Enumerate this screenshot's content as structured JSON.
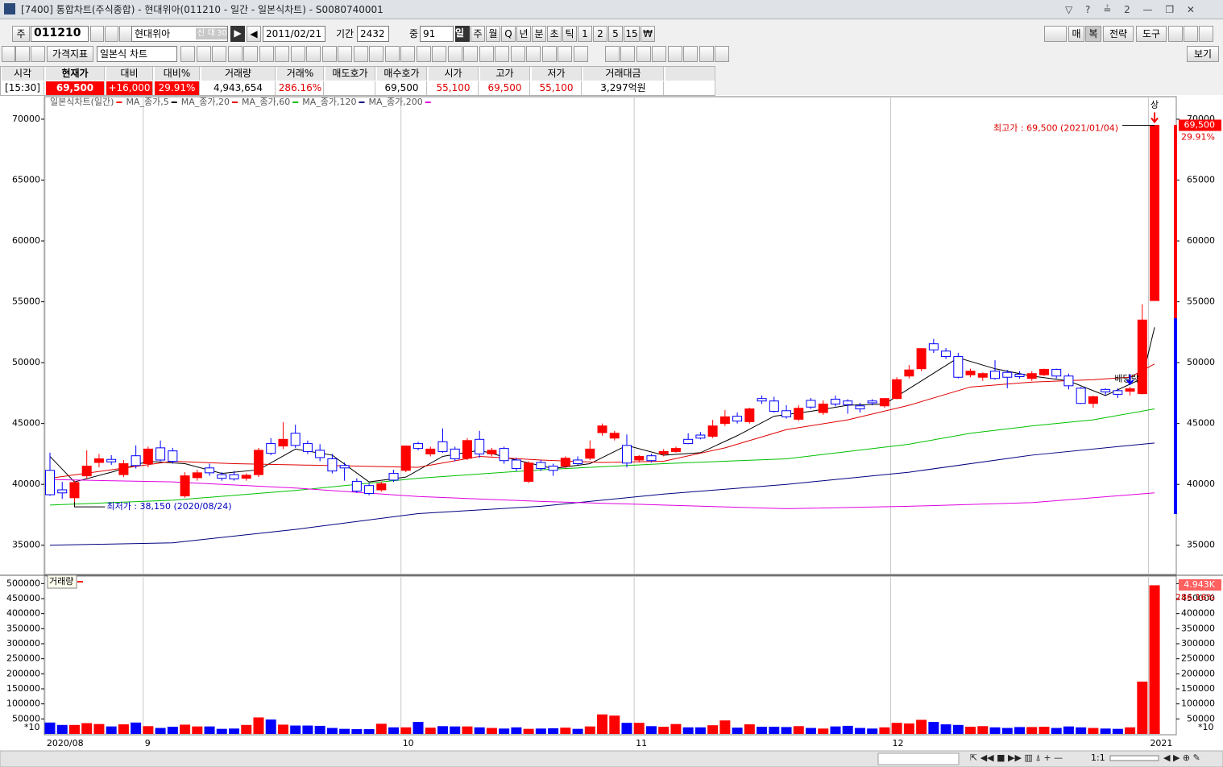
{
  "window": {
    "title": "[7400] 통합차트(주식종합) - 현대위아(011210 - 일간 - 일본식차트) - S0080740001"
  },
  "toolbar": {
    "market": "주",
    "code": "011210",
    "name": "현대위아",
    "badges": [
      "신",
      "대",
      "30"
    ],
    "date": "2011/02/21",
    "period_label": "기간",
    "period": "2432",
    "count_label": "중",
    "count": "91",
    "intervals": [
      "일",
      "주",
      "월",
      "Q",
      "년",
      "분",
      "초",
      "틱",
      "1",
      "2",
      "5",
      "15"
    ],
    "right_buttons": [
      "매",
      "복",
      "전략",
      "도구"
    ],
    "indicator": "가격지표",
    "chart_style": "일본식 차트",
    "view": "보기"
  },
  "quote": {
    "cells": [
      {
        "header": "시각",
        "value": "[15:30]"
      },
      {
        "header": "현재가",
        "value": "69,500"
      },
      {
        "header": "대비",
        "value": "+16,000"
      },
      {
        "header": "대비%",
        "value": "29.91%"
      },
      {
        "header": "거래량",
        "value": "4,943,654"
      },
      {
        "header": "거래%",
        "value": "286.16%"
      },
      {
        "header": "매도호가"
      },
      {
        "header": "매수호가",
        "value": "69,500"
      },
      {
        "header": "시가",
        "value": "55,100"
      },
      {
        "header": "고가",
        "value": "69,500"
      },
      {
        "header": "저가",
        "value": "55,100"
      },
      {
        "header": "거래대금",
        "value": "3,297억원"
      }
    ]
  },
  "chart_data": [
    {
      "type": "candlestick",
      "name": "일본식차트(일간)",
      "legend_color": "#ff0000",
      "color_up": "#ff0000",
      "color_down": "#0000ff",
      "open": [
        41150,
        39550,
        38900,
        40700,
        41800,
        42050,
        40800,
        42350,
        41700,
        43000,
        42750,
        39050,
        40550,
        41350,
        40800,
        40800,
        40500,
        40800,
        43350,
        43150,
        44200,
        43350,
        42800,
        42100,
        41550,
        40250,
        39900,
        39550,
        40900,
        41150,
        43350,
        42500,
        43500,
        42900,
        42150,
        43700,
        42500,
        42950,
        42000,
        40250,
        41800,
        41500,
        41500,
        42000,
        42150,
        44250,
        43800,
        43200,
        42000,
        42350,
        42500,
        42700,
        43700,
        44050,
        43950,
        45000,
        45600,
        45150,
        47050,
        46850,
        46050,
        45350,
        46900,
        45900,
        47000,
        46850,
        46450,
        46850,
        46450,
        47050,
        48900,
        49500,
        51550,
        50950,
        50500,
        49000,
        48800,
        49300,
        49200,
        49050,
        48700,
        49000,
        49450,
        48900,
        47900,
        46650,
        47800,
        47700,
        47650,
        47450,
        55100
      ],
      "high": [
        42600,
        40200,
        40300,
        42800,
        42500,
        42400,
        42000,
        43200,
        43100,
        43600,
        43000,
        41000,
        41200,
        41700,
        41000,
        41100,
        40900,
        43000,
        43800,
        45100,
        44900,
        43600,
        43300,
        42500,
        41800,
        40500,
        40100,
        40200,
        41200,
        43200,
        43500,
        43100,
        44600,
        43100,
        43800,
        44400,
        43000,
        43100,
        42200,
        41900,
        42000,
        41700,
        42300,
        42300,
        43600,
        45000,
        44400,
        44100,
        42400,
        42500,
        42900,
        43100,
        44200,
        44300,
        45300,
        46100,
        45900,
        46300,
        47300,
        47200,
        46500,
        46500,
        47100,
        46900,
        47300,
        47000,
        46700,
        47000,
        47100,
        48800,
        49800,
        51200,
        51950,
        51200,
        50800,
        49500,
        49200,
        50200,
        49400,
        49300,
        49300,
        49500,
        49500,
        49100,
        48000,
        47300,
        47900,
        47900,
        48000,
        54800,
        69500
      ],
      "low": [
        39050,
        38800,
        38150,
        40500,
        41400,
        41600,
        40600,
        41300,
        41400,
        41900,
        41700,
        38900,
        40300,
        40700,
        40300,
        40300,
        40300,
        40600,
        42400,
        42900,
        43000,
        42500,
        41900,
        40900,
        40300,
        39300,
        39100,
        39400,
        40200,
        41000,
        42800,
        42300,
        42600,
        41900,
        42000,
        42200,
        42300,
        41700,
        41100,
        40100,
        41100,
        40700,
        41300,
        41600,
        42000,
        44000,
        43600,
        41400,
        41800,
        41800,
        42300,
        42600,
        43300,
        43700,
        43800,
        44800,
        45000,
        45000,
        46600,
        45900,
        45400,
        45200,
        46200,
        45700,
        46400,
        45800,
        45900,
        46500,
        46300,
        47000,
        48700,
        49300,
        50800,
        50300,
        48700,
        48800,
        48500,
        48600,
        47900,
        48700,
        48500,
        48900,
        48700,
        47800,
        46600,
        46300,
        47300,
        47100,
        47300,
        47400,
        55100
      ],
      "close": [
        39150,
        39300,
        40150,
        41500,
        42100,
        41850,
        41700,
        41550,
        42900,
        42000,
        41900,
        40700,
        40950,
        40950,
        40500,
        40450,
        40750,
        42800,
        42550,
        43700,
        43200,
        42700,
        42200,
        41100,
        41350,
        39450,
        39250,
        40050,
        40350,
        43150,
        42950,
        42900,
        42700,
        42100,
        43600,
        42500,
        42800,
        41950,
        41300,
        41750,
        41300,
        41150,
        42150,
        41700,
        42900,
        44800,
        44200,
        41750,
        42300,
        41950,
        42700,
        42950,
        43350,
        43800,
        44800,
        45550,
        45200,
        46200,
        46850,
        46000,
        45550,
        46250,
        46350,
        46600,
        46600,
        46550,
        46200,
        46700,
        47050,
        48600,
        49400,
        51150,
        51050,
        50500,
        48800,
        49300,
        49100,
        48700,
        48800,
        48850,
        49100,
        49450,
        48900,
        48100,
        46650,
        47200,
        47600,
        47400,
        47850,
        53500,
        69500
      ],
      "series": [
        {
          "name": "MA_종가,5",
          "color": "#000000",
          "x": [
            0,
            2,
            5,
            8,
            11,
            14,
            17,
            20,
            23,
            26,
            29,
            32,
            35,
            38,
            41,
            44,
            47,
            50,
            53,
            56,
            59,
            62,
            65,
            68,
            71,
            74,
            77,
            80,
            83,
            86,
            89,
            90
          ],
          "values": [
            42300,
            40200,
            41000,
            41900,
            41700,
            40900,
            41200,
            42900,
            42400,
            40200,
            40600,
            42300,
            42800,
            42000,
            41300,
            41700,
            43200,
            42400,
            42600,
            44000,
            45600,
            46000,
            46500,
            46600,
            48500,
            50400,
            49500,
            48900,
            48500,
            47300,
            48700,
            52900
          ]
        },
        {
          "name": "MA_종가,20",
          "color": "#e00000",
          "x": [
            0,
            5,
            10,
            15,
            20,
            25,
            30,
            35,
            40,
            45,
            50,
            55,
            60,
            65,
            70,
            75,
            80,
            85,
            88,
            90
          ],
          "values": [
            40500,
            41200,
            41900,
            41700,
            41600,
            41500,
            41400,
            42300,
            42000,
            41800,
            41900,
            43000,
            44500,
            45300,
            46500,
            48000,
            48400,
            48600,
            48800,
            49900
          ]
        },
        {
          "name": "MA_종가,60",
          "color": "#00c000",
          "x": [
            0,
            10,
            20,
            30,
            40,
            50,
            60,
            70,
            75,
            80,
            85,
            90
          ],
          "values": [
            38300,
            38700,
            39500,
            40500,
            41200,
            41700,
            42100,
            43300,
            44200,
            44800,
            45300,
            46200
          ]
        },
        {
          "name": "MA_종가,120",
          "color": "#000080",
          "x": [
            0,
            10,
            20,
            30,
            40,
            50,
            60,
            70,
            80,
            90
          ],
          "values": [
            35000,
            35200,
            36300,
            37600,
            38200,
            39200,
            40000,
            41000,
            42400,
            43400
          ]
        },
        {
          "name": "MA_종가,200",
          "color": "#e000e0",
          "x": [
            0,
            10,
            20,
            30,
            40,
            50,
            60,
            70,
            80,
            90
          ],
          "values": [
            40400,
            40200,
            39700,
            39000,
            38600,
            38300,
            38000,
            38200,
            38500,
            39300
          ]
        }
      ],
      "annotations": [
        {
          "text": "최고가 : 69,500 (2021/01/04)",
          "x": 90,
          "y": 69500,
          "color": "#e00000"
        },
        {
          "text": "최저가 : 38,150 (2020/08/24)",
          "x": 2,
          "y": 38150,
          "color": "#0000c0"
        },
        {
          "text": "배당락",
          "x": 88,
          "y": 47850,
          "color": "#000000"
        },
        {
          "text": "상",
          "x": 90,
          "y": 69500,
          "color": "#000000"
        }
      ],
      "price_marker": {
        "value": 69500,
        "label": "69,500"
      },
      "change": "29.91%",
      "ylim": [
        32600,
        71850
      ],
      "yticks": [
        35000,
        40000,
        45000,
        50000,
        55000,
        60000,
        65000,
        70000
      ],
      "grid": "x",
      "xticks": [
        {
          "value": -0.4,
          "label": "2020/08"
        },
        {
          "value": 7.6,
          "label": "9"
        },
        {
          "value": 28.6,
          "label": "10"
        },
        {
          "value": 47.6,
          "label": "11"
        },
        {
          "value": 68.5,
          "label": "12"
        },
        {
          "value": 89.5,
          "label": "2021"
        }
      ]
    },
    {
      "type": "bar",
      "name": "거래량",
      "legend_color": "#ff0000",
      "unit_label": "*10",
      "values": [
        38000,
        30000,
        30000,
        36000,
        33000,
        25000,
        32000,
        38000,
        26000,
        20000,
        24000,
        31000,
        25000,
        25000,
        17000,
        18000,
        30000,
        55000,
        48000,
        31000,
        28000,
        28000,
        27000,
        20000,
        17000,
        16000,
        16000,
        34000,
        22000,
        22000,
        40000,
        21000,
        26000,
        25000,
        25000,
        22000,
        20000,
        18000,
        22000,
        17000,
        18000,
        19000,
        21000,
        17000,
        25000,
        65000,
        61000,
        37000,
        37000,
        26000,
        24000,
        33000,
        22000,
        22000,
        29000,
        45000,
        21000,
        32000,
        24000,
        24000,
        23000,
        26000,
        20000,
        18000,
        25000,
        27000,
        20000,
        18000,
        22000,
        37000,
        35000,
        47000,
        40000,
        32000,
        30000,
        24000,
        26000,
        22000,
        20000,
        23000,
        23000,
        24000,
        20000,
        25000,
        22000,
        20000,
        18000,
        17000,
        22000,
        174000,
        494365
      ],
      "last_label": "4.943K",
      "ratio": "286.16%",
      "ylim": [
        0,
        525000
      ],
      "yticks": [
        50000,
        100000,
        150000,
        200000,
        250000,
        300000,
        350000,
        400000,
        450000,
        500000
      ],
      "grid": "x"
    }
  ],
  "footer": {
    "zoom": "1:1"
  }
}
